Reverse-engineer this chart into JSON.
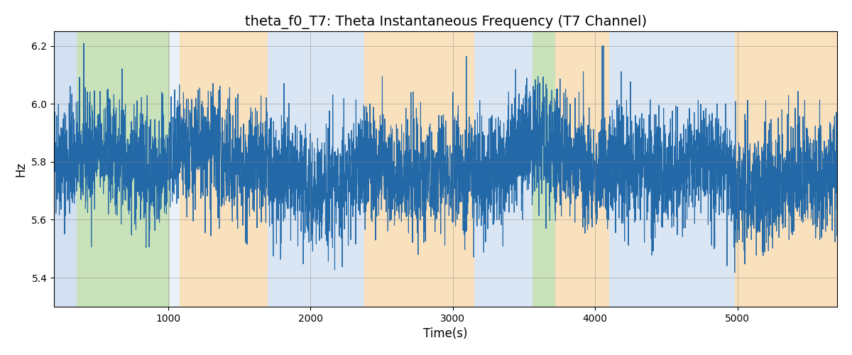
{
  "title": "theta_f0_T7: Theta Instantaneous Frequency (T7 Channel)",
  "xlabel": "Time(s)",
  "ylabel": "Hz",
  "ylim": [
    5.3,
    6.25
  ],
  "xlim": [
    200,
    5700
  ],
  "line_color": "#2369a8",
  "line_width": 0.8,
  "background_regions": [
    {
      "xmin": 200,
      "xmax": 360,
      "color": "#adc8e8",
      "alpha": 0.55
    },
    {
      "xmin": 360,
      "xmax": 1010,
      "color": "#9dcb80",
      "alpha": 0.55
    },
    {
      "xmin": 1010,
      "xmax": 1080,
      "color": "#adc8e8",
      "alpha": 0.25
    },
    {
      "xmin": 1080,
      "xmax": 1700,
      "color": "#f5c98a",
      "alpha": 0.55
    },
    {
      "xmin": 1700,
      "xmax": 2380,
      "color": "#adc8e8",
      "alpha": 0.45
    },
    {
      "xmin": 2380,
      "xmax": 3150,
      "color": "#f5c98a",
      "alpha": 0.55
    },
    {
      "xmin": 3150,
      "xmax": 3560,
      "color": "#adc8e8",
      "alpha": 0.45
    },
    {
      "xmin": 3560,
      "xmax": 3720,
      "color": "#9dcb80",
      "alpha": 0.55
    },
    {
      "xmin": 3720,
      "xmax": 4100,
      "color": "#f5c98a",
      "alpha": 0.55
    },
    {
      "xmin": 4100,
      "xmax": 4980,
      "color": "#adc8e8",
      "alpha": 0.45
    },
    {
      "xmin": 4980,
      "xmax": 5700,
      "color": "#f5c98a",
      "alpha": 0.55
    }
  ],
  "seed": 42,
  "n_points": 5500,
  "base_freq": 5.78,
  "noise_std": 0.1,
  "grid": true,
  "title_fontsize": 14,
  "figsize": [
    12.0,
    5.0
  ],
  "dpi": 100
}
